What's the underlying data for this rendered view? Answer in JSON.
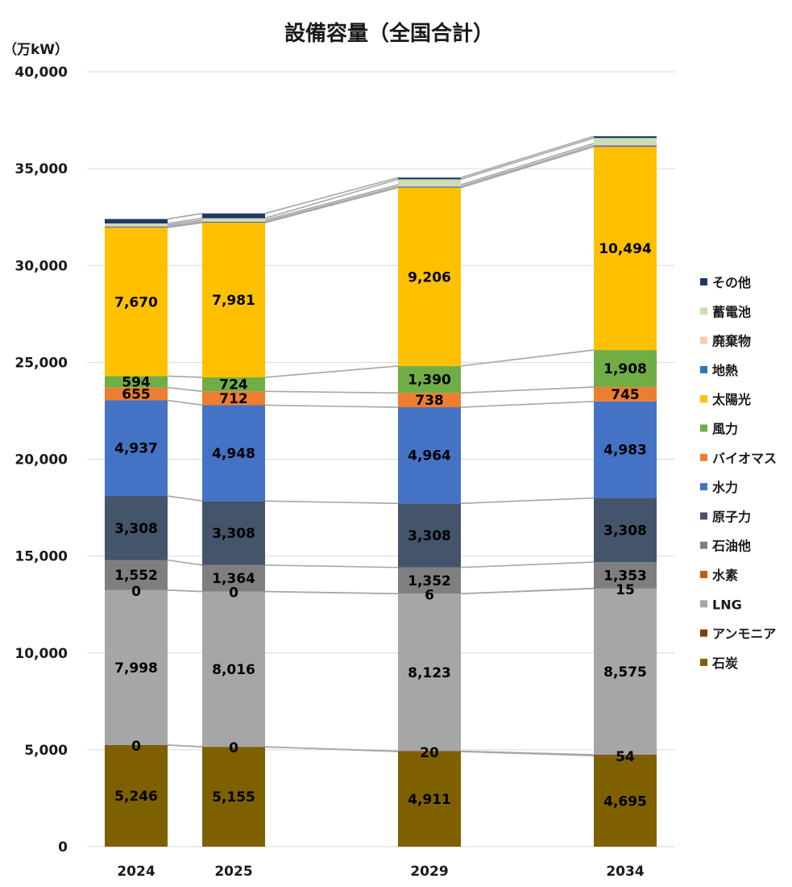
{
  "chart_data": {
    "type": "bar",
    "stacked": true,
    "title": "設備容量（全国合計）",
    "unit_label": "（万kW）",
    "categories": [
      "2024",
      "2025",
      "2029",
      "2034"
    ],
    "ylim": [
      0,
      40000
    ],
    "yticks": [
      0,
      5000,
      10000,
      15000,
      20000,
      25000,
      30000,
      35000,
      40000
    ],
    "ytick_labels": [
      "0",
      "5,000",
      "10,000",
      "15,000",
      "20,000",
      "25,000",
      "30,000",
      "35,000",
      "40,000"
    ],
    "grid": true,
    "legend_position": "right",
    "series": [
      {
        "name": "石炭",
        "color": "#7f6000",
        "values": [
          5246,
          5155,
          4911,
          4695
        ],
        "labels": [
          "5,246",
          "5,155",
          "4,911",
          "4,695"
        ]
      },
      {
        "name": "アンモニア",
        "color": "#843c0c",
        "values": [
          0,
          0,
          20,
          54
        ],
        "labels": [
          "0",
          "0",
          "20",
          "54"
        ]
      },
      {
        "name": "LNG",
        "color": "#a6a6a6",
        "values": [
          7998,
          8016,
          8123,
          8575
        ],
        "labels": [
          "7,998",
          "8,016",
          "8,123",
          "8,575"
        ]
      },
      {
        "name": "水素",
        "color": "#c55a11",
        "values": [
          0,
          0,
          6,
          15
        ],
        "labels": [
          "0",
          "0",
          "6",
          "15"
        ]
      },
      {
        "name": "石油他",
        "color": "#7f7f7f",
        "values": [
          1552,
          1364,
          1352,
          1353
        ],
        "labels": [
          "1,552",
          "1,364",
          "1,352",
          "1,353"
        ]
      },
      {
        "name": "原子力",
        "color": "#44546a",
        "values": [
          3308,
          3308,
          3308,
          3308
        ],
        "labels": [
          "3,308",
          "3,308",
          "3,308",
          "3,308"
        ]
      },
      {
        "name": "水力",
        "color": "#4472c4",
        "values": [
          4937,
          4948,
          4964,
          4983
        ],
        "labels": [
          "4,937",
          "4,948",
          "4,964",
          "4,983"
        ]
      },
      {
        "name": "バイオマス",
        "color": "#ed7d31",
        "values": [
          655,
          712,
          738,
          745
        ],
        "labels": [
          "655",
          "712",
          "738",
          "745"
        ]
      },
      {
        "name": "風力",
        "color": "#70ad47",
        "values": [
          594,
          724,
          1390,
          1908
        ],
        "labels": [
          "594",
          "724",
          "1,390",
          "1,908"
        ]
      },
      {
        "name": "太陽光",
        "color": "#ffc000",
        "values": [
          7670,
          7981,
          9206,
          10494
        ],
        "labels": [
          "7,670",
          "7,981",
          "9,206",
          "10,494"
        ]
      },
      {
        "name": "地熱",
        "color": "#2e75b6",
        "values": [
          50,
          50,
          60,
          70
        ],
        "labels": null
      },
      {
        "name": "廃棄物",
        "color": "#f8cbad",
        "values": [
          80,
          80,
          90,
          100
        ],
        "labels": null
      },
      {
        "name": "蓄電池",
        "color": "#c5e0b4",
        "values": [
          80,
          100,
          280,
          280
        ],
        "labels": null
      },
      {
        "name": "その他",
        "color": "#203864",
        "values": [
          230,
          250,
          90,
          90
        ],
        "labels": null
      }
    ],
    "legend_order": [
      "その他",
      "蓄電池",
      "廃棄物",
      "地熱",
      "太陽光",
      "風力",
      "バイオマス",
      "水力",
      "原子力",
      "石油他",
      "水素",
      "LNG",
      "アンモニア",
      "石炭"
    ]
  }
}
